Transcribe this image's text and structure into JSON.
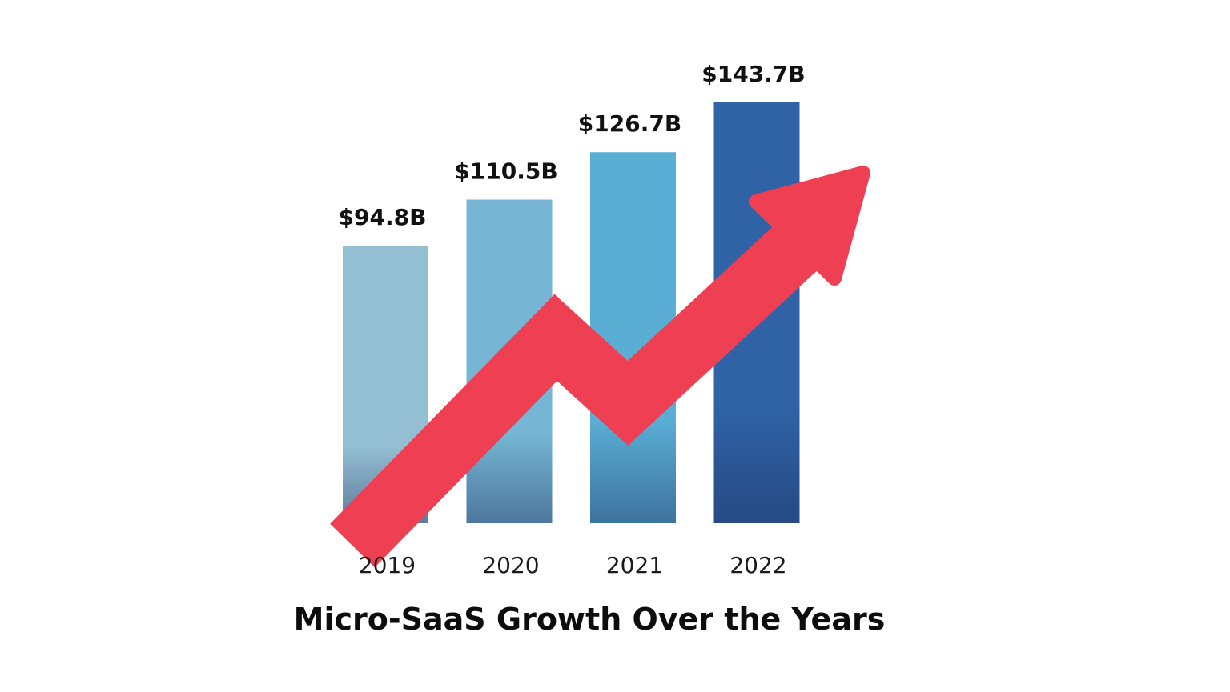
{
  "chart_data": {
    "type": "bar",
    "title": "Micro-SaaS Growth Over the Years",
    "categories": [
      "2019",
      "2020",
      "2021",
      "2022"
    ],
    "values": [
      94.8,
      110.5,
      126.7,
      143.7
    ],
    "value_labels": [
      "$94.8B",
      "$110.5B",
      "$126.7B",
      "$143.7B"
    ],
    "xlabel": "",
    "ylabel": "",
    "ylim": [
      0,
      143.7
    ],
    "grid": false,
    "bar_colors": [
      "#94bfd3",
      "#76b6d4",
      "#5aaed4",
      "#2f63a6"
    ],
    "trend_arrow_color": "#ef3f52"
  }
}
